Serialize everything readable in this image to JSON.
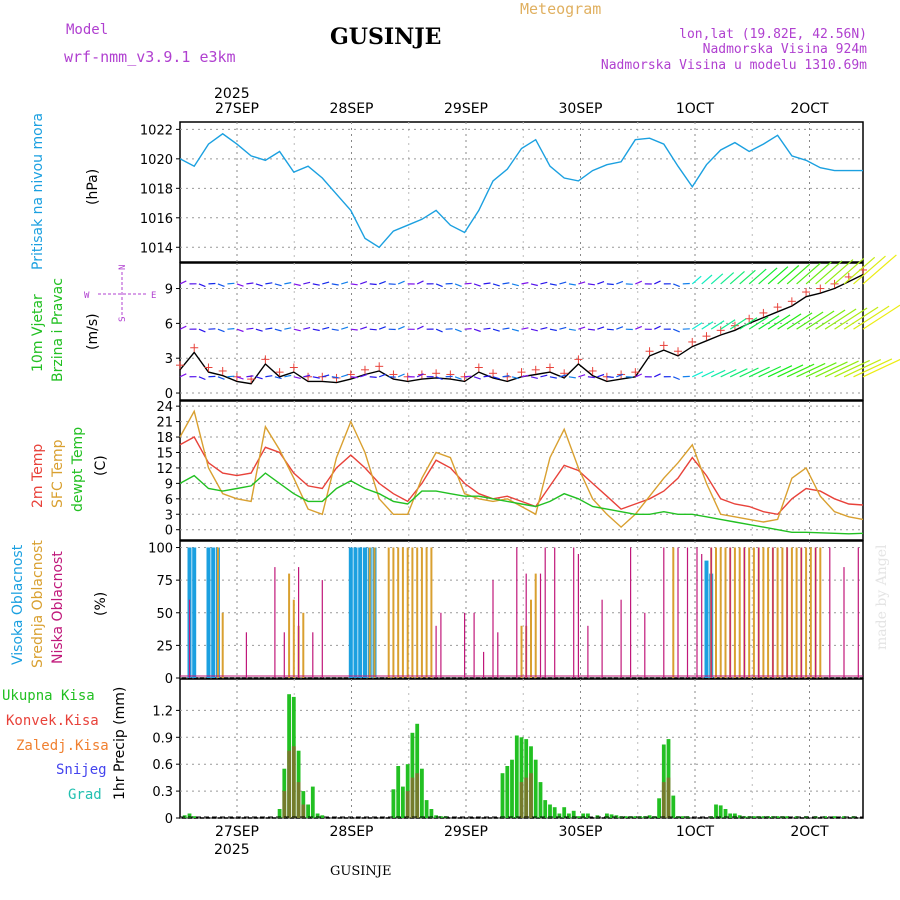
{
  "header": {
    "model_label": "Model",
    "model_name": "wrf-nmm_v3.9.1 e3km",
    "station": "GUSINJE",
    "meteogram_label": "Meteogram",
    "lonlat": "lon,lat (19.82E, 42.56N)",
    "elevation": "Nadmorska Visina 924m",
    "model_elevation": "Nadmorska Visina u modelu 1310.69m",
    "credit": "made by Angel",
    "footer_station": "GUSINJE"
  },
  "colors": {
    "pressure": "#1ba0e0",
    "temp2m": "#e8423a",
    "sfc": "#d9a030",
    "dewpt": "#22c022",
    "high_cloud": "#1ba0e0",
    "mid_cloud": "#d9a030",
    "low_cloud": "#c0187a",
    "total_precip": "#22c022",
    "conv_precip": "#e8423a",
    "freezing_precip": "#f08030",
    "snow": "#4444ee",
    "graupel": "#22c0b0",
    "model_text": "#b040d0",
    "meteogram_text": "#e0b060",
    "info_text": "#b040d0"
  },
  "time_axis": {
    "year_top": "2025",
    "year_bottom": "2025",
    "day_labels": [
      "27SEP",
      "28SEP",
      "29SEP",
      "30SEP",
      "1OCT",
      "2OCT"
    ],
    "hours_total": 144
  },
  "chart_data": [
    {
      "type": "line",
      "title": "Pritisak na nivou mora",
      "ylabel": "(hPa)",
      "ylim": [
        1013,
        1022.5
      ],
      "yticks": [
        "1014",
        "1016",
        "1018",
        "1020",
        "1022"
      ],
      "series": [
        {
          "name": "Pritisak na nivou mora",
          "x": [
            0,
            3,
            6,
            9,
            12,
            15,
            18,
            21,
            24,
            27,
            30,
            33,
            36,
            39,
            42,
            45,
            48,
            51,
            54,
            57,
            60,
            63,
            66,
            69,
            72,
            75,
            78,
            81,
            84,
            87,
            90,
            93,
            96,
            99,
            102,
            105,
            108,
            111,
            114,
            117,
            120,
            123,
            126,
            129,
            132,
            135,
            138,
            141,
            144
          ],
          "values": [
            1020.0,
            1019.5,
            1021.0,
            1021.7,
            1021.0,
            1020.2,
            1019.9,
            1020.5,
            1019.1,
            1019.5,
            1018.7,
            1017.6,
            1016.5,
            1014.6,
            1014.0,
            1015.1,
            1015.5,
            1015.9,
            1016.5,
            1015.5,
            1015.0,
            1016.5,
            1018.5,
            1019.3,
            1020.7,
            1021.3,
            1019.5,
            1018.7,
            1018.5,
            1019.2,
            1019.6,
            1019.8,
            1021.3,
            1021.4,
            1021.0,
            1019.5,
            1018.1,
            1019.6,
            1020.6,
            1021.1,
            1020.5,
            1021.0,
            1021.6,
            1020.2,
            1019.9,
            1019.4,
            1019.2,
            1019.2,
            1019.2
          ]
        }
      ]
    },
    {
      "type": "line",
      "title": "10m Vjetar Brzina i Pravac",
      "ylabel": "(m/s)",
      "ylim": [
        -0.6,
        11.2
      ],
      "yticks": [
        "0",
        "3",
        "6",
        "9"
      ],
      "compass": [
        "N",
        "E",
        "S",
        "W"
      ],
      "series": [
        {
          "name": "Brzina",
          "x": [
            0,
            3,
            6,
            9,
            12,
            15,
            18,
            21,
            24,
            27,
            30,
            33,
            36,
            39,
            42,
            45,
            48,
            51,
            54,
            57,
            60,
            63,
            66,
            69,
            72,
            75,
            78,
            81,
            84,
            87,
            90,
            93,
            96,
            99,
            102,
            105,
            108,
            111,
            114,
            117,
            120,
            123,
            126,
            129,
            132,
            135,
            138,
            141,
            144
          ],
          "values": [
            2.0,
            3.5,
            1.8,
            1.5,
            1.0,
            0.8,
            2.5,
            1.4,
            1.8,
            1.0,
            1.0,
            0.9,
            1.2,
            1.6,
            1.9,
            1.2,
            1.0,
            1.2,
            1.3,
            1.2,
            1.0,
            1.8,
            1.3,
            1.0,
            1.4,
            1.6,
            1.8,
            1.3,
            2.5,
            1.5,
            1.0,
            1.2,
            1.4,
            3.2,
            3.7,
            3.2,
            4.0,
            4.5,
            5.0,
            5.4,
            6.0,
            6.5,
            7.0,
            7.5,
            8.3,
            8.6,
            9.0,
            9.6,
            10.2
          ]
        }
      ]
    },
    {
      "type": "line",
      "title": "2m Temp / SFC Temp / dewpt Temp",
      "ylabel": "(C)",
      "ylim": [
        -2,
        25
      ],
      "yticks": [
        "0",
        "3",
        "6",
        "9",
        "12",
        "15",
        "18",
        "21",
        "24"
      ],
      "series": [
        {
          "name": "2m Temp",
          "x": [
            0,
            3,
            6,
            9,
            12,
            15,
            18,
            21,
            24,
            27,
            30,
            33,
            36,
            39,
            42,
            45,
            48,
            51,
            54,
            57,
            60,
            63,
            66,
            69,
            72,
            75,
            78,
            81,
            84,
            87,
            90,
            93,
            96,
            99,
            102,
            105,
            108,
            111,
            114,
            117,
            120,
            123,
            126,
            129,
            132,
            135,
            138,
            141,
            144
          ],
          "values": [
            16.5,
            18.0,
            13.0,
            11.0,
            10.5,
            11.0,
            16.0,
            15.0,
            11.0,
            8.5,
            8.0,
            12.0,
            14.5,
            12.0,
            9.0,
            7.0,
            5.5,
            9.0,
            13.5,
            12.0,
            9.0,
            7.0,
            6.0,
            6.5,
            5.5,
            4.5,
            8.5,
            12.5,
            11.5,
            9.0,
            6.5,
            4.0,
            5.0,
            6.0,
            7.5,
            10.0,
            14.0,
            10.5,
            6.0,
            5.0,
            4.5,
            3.5,
            3.0,
            6.0,
            8.0,
            7.5,
            6.0,
            5.0,
            4.8
          ]
        },
        {
          "name": "SFC Temp",
          "x": [
            0,
            3,
            6,
            9,
            12,
            15,
            18,
            21,
            24,
            27,
            30,
            33,
            36,
            39,
            42,
            45,
            48,
            51,
            54,
            57,
            60,
            63,
            66,
            69,
            72,
            75,
            78,
            81,
            84,
            87,
            90,
            93,
            96,
            99,
            102,
            105,
            108,
            111,
            114,
            117,
            120,
            123,
            126,
            129,
            132,
            135,
            138,
            141,
            144
          ],
          "values": [
            18.0,
            23.0,
            12.0,
            7.0,
            6.0,
            5.5,
            20.0,
            15.5,
            10.0,
            4.0,
            3.0,
            14.0,
            21.0,
            15.0,
            6.0,
            3.0,
            3.0,
            10.0,
            15.0,
            14.0,
            7.0,
            6.0,
            5.5,
            6.0,
            4.5,
            3.0,
            14.0,
            19.5,
            12.0,
            6.0,
            3.0,
            0.5,
            3.0,
            6.5,
            10.0,
            13.0,
            16.5,
            9.0,
            3.0,
            2.5,
            2.0,
            1.5,
            2.0,
            10.0,
            12.0,
            6.5,
            3.5,
            2.5,
            2.0
          ]
        },
        {
          "name": "dewpt Temp",
          "x": [
            0,
            3,
            6,
            9,
            12,
            15,
            18,
            21,
            24,
            27,
            30,
            33,
            36,
            39,
            42,
            45,
            48,
            51,
            54,
            57,
            60,
            63,
            66,
            69,
            72,
            75,
            78,
            81,
            84,
            87,
            90,
            93,
            96,
            99,
            102,
            105,
            108,
            111,
            114,
            117,
            120,
            123,
            126,
            129,
            132,
            135,
            138,
            141,
            144
          ],
          "values": [
            9.0,
            10.5,
            8.0,
            7.5,
            8.0,
            8.5,
            11.0,
            9.0,
            7.0,
            5.5,
            5.5,
            8.0,
            9.5,
            8.0,
            7.0,
            5.5,
            5.0,
            7.5,
            7.5,
            7.0,
            6.5,
            6.5,
            6.0,
            5.5,
            5.0,
            4.5,
            5.5,
            7.0,
            6.0,
            4.5,
            4.0,
            3.5,
            3.0,
            3.0,
            3.5,
            3.0,
            3.0,
            2.5,
            2.0,
            1.5,
            1.0,
            0.5,
            0.0,
            -0.5,
            -0.5,
            -0.6,
            -0.7,
            -0.8,
            -0.7
          ]
        }
      ]
    },
    {
      "type": "bar",
      "title": "Visoka Oblacnost / Srednja Oblacnost / Niska Oblacnost",
      "ylabel": "(%)",
      "ylim": [
        0,
        105
      ],
      "yticks": [
        "0",
        "25",
        "50",
        "75",
        "100"
      ],
      "series": [
        {
          "name": "Visoka Oblacnost",
          "x": [
            2,
            3,
            6,
            7,
            8,
            36,
            37,
            38,
            39,
            40,
            41,
            111,
            112
          ],
          "values": [
            100,
            100,
            100,
            100,
            100,
            100,
            100,
            100,
            100,
            100,
            100,
            90,
            80
          ]
        },
        {
          "name": "Srednja Oblacnost",
          "x": [
            8,
            9,
            23,
            24,
            25,
            26,
            40,
            41,
            44,
            45,
            46,
            47,
            48,
            49,
            50,
            51,
            52,
            53,
            72,
            73,
            74,
            75,
            104,
            112,
            113,
            114,
            115,
            116,
            117,
            118,
            119,
            120,
            121,
            122,
            123,
            124,
            125,
            126,
            127,
            128,
            129,
            130,
            131,
            132,
            133,
            134,
            135
          ],
          "values": [
            100,
            50,
            80,
            60,
            40,
            50,
            100,
            100,
            100,
            100,
            100,
            100,
            100,
            100,
            100,
            100,
            100,
            100,
            40,
            40,
            60,
            80,
            100,
            100,
            100,
            100,
            100,
            100,
            100,
            100,
            100,
            100,
            100,
            100,
            100,
            100,
            100,
            100,
            100,
            100,
            100,
            100,
            100,
            100,
            100,
            100,
            100
          ]
        },
        {
          "name": "Niska Oblacnost",
          "x": [
            2,
            14,
            20,
            22,
            25,
            28,
            30,
            54,
            55,
            60,
            62,
            64,
            66,
            67,
            71,
            73,
            76,
            77,
            79,
            83,
            84,
            86,
            89,
            93,
            95,
            98,
            102,
            105,
            107,
            109,
            110,
            112,
            116,
            119,
            122,
            125,
            128,
            131,
            134,
            137,
            140,
            143
          ],
          "values": [
            60,
            35,
            85,
            35,
            85,
            35,
            75,
            40,
            50,
            50,
            50,
            20,
            75,
            35,
            100,
            80,
            80,
            100,
            100,
            100,
            95,
            40,
            60,
            60,
            100,
            50,
            100,
            100,
            100,
            100,
            95,
            100,
            100,
            100,
            100,
            100,
            100,
            100,
            100,
            100,
            85,
            100
          ]
        }
      ]
    },
    {
      "type": "bar",
      "title": "1hr Precip",
      "ylabel": "(mm)",
      "ylim": [
        0,
        1.55
      ],
      "yticks": [
        "0",
        "0.3",
        "0.6",
        "0.9",
        "1.2"
      ],
      "legend": [
        "Ukupna Kisa",
        "Konvek.Kisa",
        "Zaledj.Kisa",
        "Snijeg",
        "Grad"
      ],
      "series": [
        {
          "name": "Ukupna Kisa",
          "x": [
            1,
            2,
            3,
            21,
            22,
            23,
            24,
            25,
            26,
            27,
            28,
            29,
            30,
            45,
            46,
            47,
            48,
            49,
            50,
            51,
            52,
            53,
            54,
            55,
            56,
            68,
            69,
            70,
            71,
            72,
            73,
            74,
            75,
            76,
            77,
            78,
            79,
            80,
            81,
            82,
            83,
            84,
            85,
            86,
            88,
            90,
            91,
            92,
            93,
            94,
            95,
            96,
            97,
            98,
            99,
            100,
            101,
            102,
            103,
            104,
            105,
            106,
            107,
            112,
            113,
            114,
            115,
            116,
            117,
            118,
            119,
            120,
            121,
            122,
            123,
            124,
            125,
            126,
            127,
            128,
            130,
            132,
            134,
            136,
            138,
            140,
            142
          ],
          "values": [
            0.03,
            0.05,
            0.02,
            0.1,
            0.55,
            1.38,
            1.35,
            0.75,
            0.3,
            0.15,
            0.35,
            0.05,
            0.03,
            0.32,
            0.58,
            0.35,
            0.6,
            0.95,
            1.05,
            0.55,
            0.2,
            0.1,
            0.03,
            0.02,
            0.02,
            0.5,
            0.58,
            0.65,
            0.92,
            0.9,
            0.88,
            0.8,
            0.65,
            0.4,
            0.2,
            0.15,
            0.12,
            0.05,
            0.12,
            0.05,
            0.08,
            0.02,
            0.05,
            0.05,
            0.03,
            0.05,
            0.04,
            0.03,
            0.02,
            0.02,
            0.02,
            0.02,
            0.02,
            0.02,
            0.03,
            0.02,
            0.22,
            0.82,
            0.88,
            0.25,
            0.02,
            0.02,
            0.02,
            0.02,
            0.15,
            0.14,
            0.1,
            0.05,
            0.05,
            0.03,
            0.02,
            0.02,
            0.02,
            0.02,
            0.02,
            0.02,
            0.02,
            0.02,
            0.02,
            0.02,
            0.02,
            0.02,
            0.02,
            0.02,
            0.02,
            0.02,
            0.02
          ]
        },
        {
          "name": "Konvek.Kisa",
          "x": [
            22,
            23,
            24,
            25,
            26,
            48,
            49,
            50,
            72,
            73,
            74,
            102,
            103
          ],
          "values": [
            0.3,
            0.75,
            0.8,
            0.4,
            0.15,
            0.3,
            0.45,
            0.5,
            0.4,
            0.45,
            0.5,
            0.4,
            0.45
          ]
        }
      ]
    }
  ],
  "panel_labels": {
    "p1": [
      "Pritisak na nivou mora"
    ],
    "p2": [
      "10m Vjetar",
      "Brzina i Pravac"
    ],
    "p3": [
      "2m Temp",
      "SFC Temp",
      "dewpt Temp"
    ],
    "p4": [
      "Visoka Oblacnost",
      "Srednja Oblacnost",
      "Niska Oblacnost"
    ],
    "p5_units": "1hr Precip (mm)"
  }
}
